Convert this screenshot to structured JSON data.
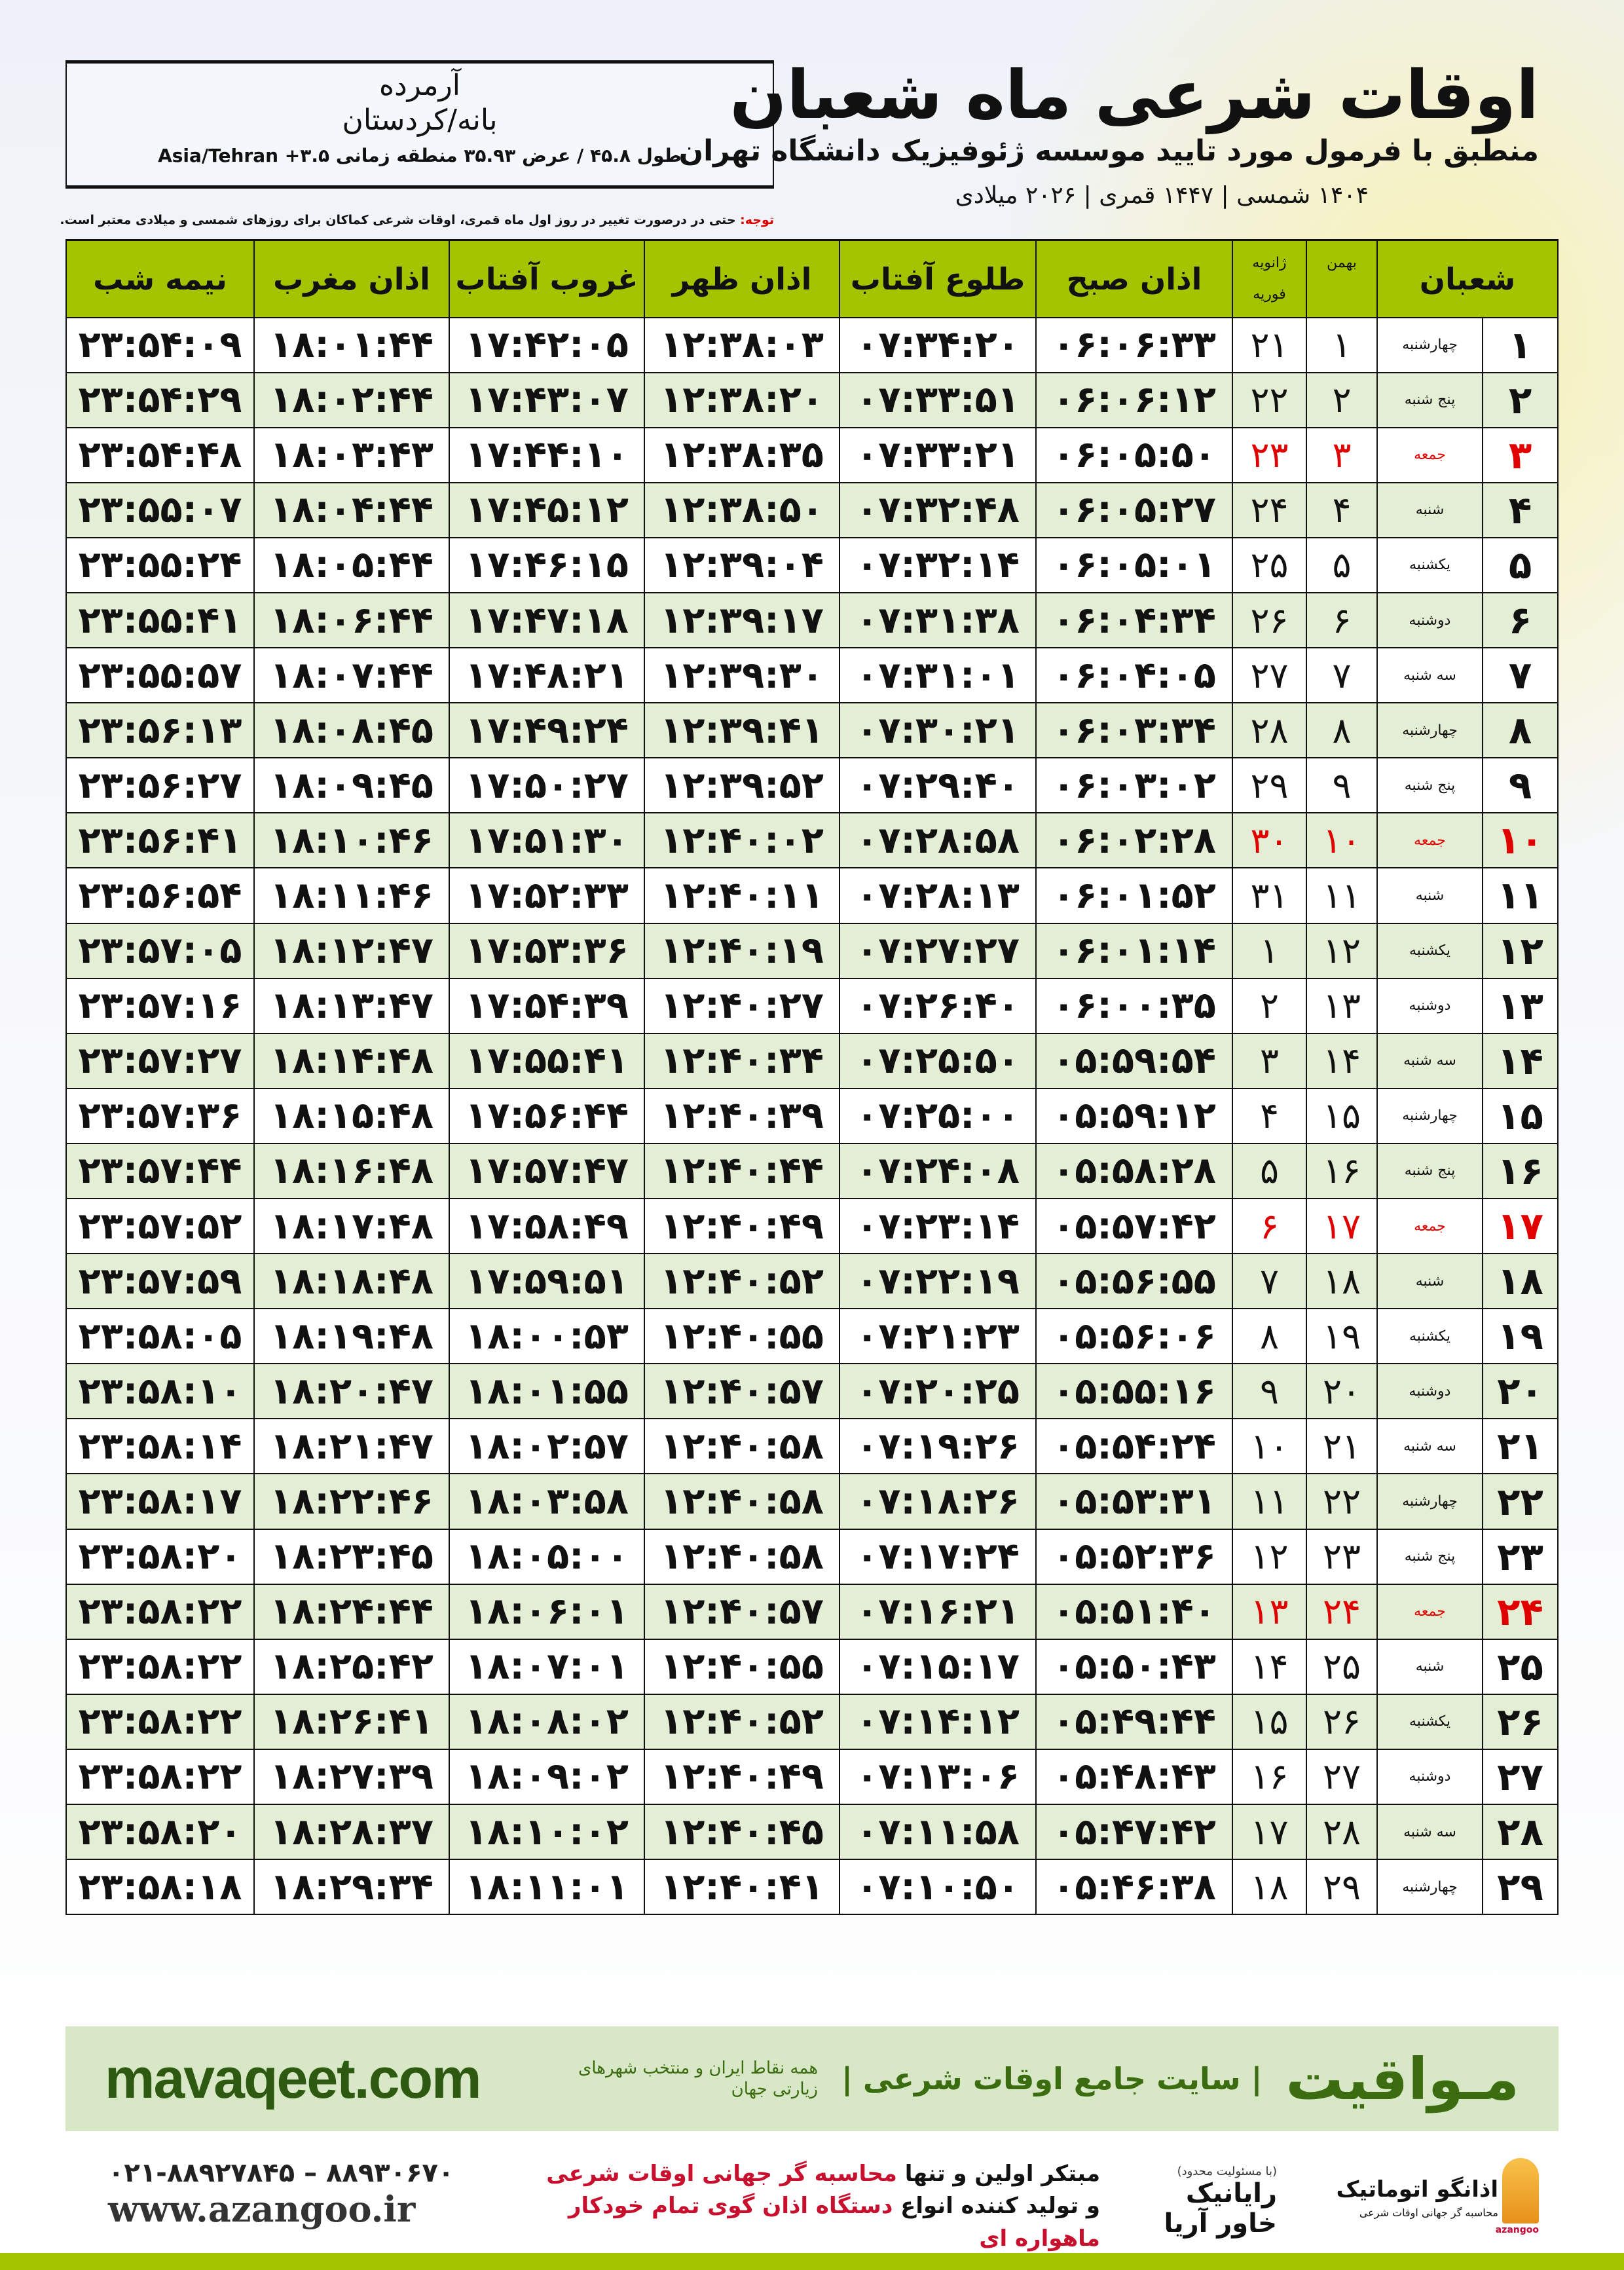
{
  "header": {
    "title": "اوقات شرعی ماه شعبان",
    "subtitle": "منطبق با فرمول مورد تایید موسسه ژئوفیزیک دانشگاه تهران",
    "dates": "۱۴۰۴ شمسی | ۱۴۴۷ قمری | ۲۰۲۶ میلادی"
  },
  "location": {
    "city": "آرمرده",
    "region": "بانه/کردستان",
    "coords": "طول ۴۵.۸ / عرض ۳۵.۹۳ منطقه زمانی ۳.۵+ Asia/Tehran"
  },
  "note": {
    "label": "توجه:",
    "text": " حتی در درصورت تغییر در روز اول ماه قمری، اوقات شرعی کماکان برای روزهای شمسی و میلادی معتبر است."
  },
  "colors": {
    "header_bg": "#a5c400",
    "row_alt": "#e4eed4",
    "friday": "#e00000",
    "brand": "#3b6c10"
  },
  "table": {
    "headers": {
      "shaban": "شعبان",
      "bahman": "بهمن",
      "greg1": "ژانویه",
      "greg2": "فوریه",
      "fajr": "اذان صبح",
      "sunrise": "طلوع آفتاب",
      "dhuhr": "اذان ظهر",
      "sunset": "غروب آفتاب",
      "maghrib": "اذان مغرب",
      "midnight": "نیمه شب"
    },
    "rows": [
      [
        "۱",
        "چهارشنبه",
        "۱",
        "۲۱",
        "۰۶:۰۶:۳۳",
        "۰۷:۳۴:۲۰",
        "۱۲:۳۸:۰۳",
        "۱۷:۴۲:۰۵",
        "۱۸:۰۱:۴۴",
        "۲۳:۵۴:۰۹"
      ],
      [
        "۲",
        "پنج شنبه",
        "۲",
        "۲۲",
        "۰۶:۰۶:۱۲",
        "۰۷:۳۳:۵۱",
        "۱۲:۳۸:۲۰",
        "۱۷:۴۳:۰۷",
        "۱۸:۰۲:۴۴",
        "۲۳:۵۴:۲۹"
      ],
      [
        "۳",
        "جمعه",
        "۳",
        "۲۳",
        "۰۶:۰۵:۵۰",
        "۰۷:۳۳:۲۱",
        "۱۲:۳۸:۳۵",
        "۱۷:۴۴:۱۰",
        "۱۸:۰۳:۴۳",
        "۲۳:۵۴:۴۸"
      ],
      [
        "۴",
        "شنبه",
        "۴",
        "۲۴",
        "۰۶:۰۵:۲۷",
        "۰۷:۳۲:۴۸",
        "۱۲:۳۸:۵۰",
        "۱۷:۴۵:۱۲",
        "۱۸:۰۴:۴۴",
        "۲۳:۵۵:۰۷"
      ],
      [
        "۵",
        "یکشنبه",
        "۵",
        "۲۵",
        "۰۶:۰۵:۰۱",
        "۰۷:۳۲:۱۴",
        "۱۲:۳۹:۰۴",
        "۱۷:۴۶:۱۵",
        "۱۸:۰۵:۴۴",
        "۲۳:۵۵:۲۴"
      ],
      [
        "۶",
        "دوشنبه",
        "۶",
        "۲۶",
        "۰۶:۰۴:۳۴",
        "۰۷:۳۱:۳۸",
        "۱۲:۳۹:۱۷",
        "۱۷:۴۷:۱۸",
        "۱۸:۰۶:۴۴",
        "۲۳:۵۵:۴۱"
      ],
      [
        "۷",
        "سه شنبه",
        "۷",
        "۲۷",
        "۰۶:۰۴:۰۵",
        "۰۷:۳۱:۰۱",
        "۱۲:۳۹:۳۰",
        "۱۷:۴۸:۲۱",
        "۱۸:۰۷:۴۴",
        "۲۳:۵۵:۵۷"
      ],
      [
        "۸",
        "چهارشنبه",
        "۸",
        "۲۸",
        "۰۶:۰۳:۳۴",
        "۰۷:۳۰:۲۱",
        "۱۲:۳۹:۴۱",
        "۱۷:۴۹:۲۴",
        "۱۸:۰۸:۴۵",
        "۲۳:۵۶:۱۳"
      ],
      [
        "۹",
        "پنج شنبه",
        "۹",
        "۲۹",
        "۰۶:۰۳:۰۲",
        "۰۷:۲۹:۴۰",
        "۱۲:۳۹:۵۲",
        "۱۷:۵۰:۲۷",
        "۱۸:۰۹:۴۵",
        "۲۳:۵۶:۲۷"
      ],
      [
        "۱۰",
        "جمعه",
        "۱۰",
        "۳۰",
        "۰۶:۰۲:۲۸",
        "۰۷:۲۸:۵۸",
        "۱۲:۴۰:۰۲",
        "۱۷:۵۱:۳۰",
        "۱۸:۱۰:۴۶",
        "۲۳:۵۶:۴۱"
      ],
      [
        "۱۱",
        "شنبه",
        "۱۱",
        "۳۱",
        "۰۶:۰۱:۵۲",
        "۰۷:۲۸:۱۳",
        "۱۲:۴۰:۱۱",
        "۱۷:۵۲:۳۳",
        "۱۸:۱۱:۴۶",
        "۲۳:۵۶:۵۴"
      ],
      [
        "۱۲",
        "یکشنبه",
        "۱۲",
        "۱",
        "۰۶:۰۱:۱۴",
        "۰۷:۲۷:۲۷",
        "۱۲:۴۰:۱۹",
        "۱۷:۵۳:۳۶",
        "۱۸:۱۲:۴۷",
        "۲۳:۵۷:۰۵"
      ],
      [
        "۱۳",
        "دوشنبه",
        "۱۳",
        "۲",
        "۰۶:۰۰:۳۵",
        "۰۷:۲۶:۴۰",
        "۱۲:۴۰:۲۷",
        "۱۷:۵۴:۳۹",
        "۱۸:۱۳:۴۷",
        "۲۳:۵۷:۱۶"
      ],
      [
        "۱۴",
        "سه شنبه",
        "۱۴",
        "۳",
        "۰۵:۵۹:۵۴",
        "۰۷:۲۵:۵۰",
        "۱۲:۴۰:۳۴",
        "۱۷:۵۵:۴۱",
        "۱۸:۱۴:۴۸",
        "۲۳:۵۷:۲۷"
      ],
      [
        "۱۵",
        "چهارشنبه",
        "۱۵",
        "۴",
        "۰۵:۵۹:۱۲",
        "۰۷:۲۵:۰۰",
        "۱۲:۴۰:۳۹",
        "۱۷:۵۶:۴۴",
        "۱۸:۱۵:۴۸",
        "۲۳:۵۷:۳۶"
      ],
      [
        "۱۶",
        "پنج شنبه",
        "۱۶",
        "۵",
        "۰۵:۵۸:۲۸",
        "۰۷:۲۴:۰۸",
        "۱۲:۴۰:۴۴",
        "۱۷:۵۷:۴۷",
        "۱۸:۱۶:۴۸",
        "۲۳:۵۷:۴۴"
      ],
      [
        "۱۷",
        "جمعه",
        "۱۷",
        "۶",
        "۰۵:۵۷:۴۲",
        "۰۷:۲۳:۱۴",
        "۱۲:۴۰:۴۹",
        "۱۷:۵۸:۴۹",
        "۱۸:۱۷:۴۸",
        "۲۳:۵۷:۵۲"
      ],
      [
        "۱۸",
        "شنبه",
        "۱۸",
        "۷",
        "۰۵:۵۶:۵۵",
        "۰۷:۲۲:۱۹",
        "۱۲:۴۰:۵۲",
        "۱۷:۵۹:۵۱",
        "۱۸:۱۸:۴۸",
        "۲۳:۵۷:۵۹"
      ],
      [
        "۱۹",
        "یکشنبه",
        "۱۹",
        "۸",
        "۰۵:۵۶:۰۶",
        "۰۷:۲۱:۲۳",
        "۱۲:۴۰:۵۵",
        "۱۸:۰۰:۵۳",
        "۱۸:۱۹:۴۸",
        "۲۳:۵۸:۰۵"
      ],
      [
        "۲۰",
        "دوشنبه",
        "۲۰",
        "۹",
        "۰۵:۵۵:۱۶",
        "۰۷:۲۰:۲۵",
        "۱۲:۴۰:۵۷",
        "۱۸:۰۱:۵۵",
        "۱۸:۲۰:۴۷",
        "۲۳:۵۸:۱۰"
      ],
      [
        "۲۱",
        "سه شنبه",
        "۲۱",
        "۱۰",
        "۰۵:۵۴:۲۴",
        "۰۷:۱۹:۲۶",
        "۱۲:۴۰:۵۸",
        "۱۸:۰۲:۵۷",
        "۱۸:۲۱:۴۷",
        "۲۳:۵۸:۱۴"
      ],
      [
        "۲۲",
        "چهارشنبه",
        "۲۲",
        "۱۱",
        "۰۵:۵۳:۳۱",
        "۰۷:۱۸:۲۶",
        "۱۲:۴۰:۵۸",
        "۱۸:۰۳:۵۸",
        "۱۸:۲۲:۴۶",
        "۲۳:۵۸:۱۷"
      ],
      [
        "۲۳",
        "پنج شنبه",
        "۲۳",
        "۱۲",
        "۰۵:۵۲:۳۶",
        "۰۷:۱۷:۲۴",
        "۱۲:۴۰:۵۸",
        "۱۸:۰۵:۰۰",
        "۱۸:۲۳:۴۵",
        "۲۳:۵۸:۲۰"
      ],
      [
        "۲۴",
        "جمعه",
        "۲۴",
        "۱۳",
        "۰۵:۵۱:۴۰",
        "۰۷:۱۶:۲۱",
        "۱۲:۴۰:۵۷",
        "۱۸:۰۶:۰۱",
        "۱۸:۲۴:۴۴",
        "۲۳:۵۸:۲۲"
      ],
      [
        "۲۵",
        "شنبه",
        "۲۵",
        "۱۴",
        "۰۵:۵۰:۴۳",
        "۰۷:۱۵:۱۷",
        "۱۲:۴۰:۵۵",
        "۱۸:۰۷:۰۱",
        "۱۸:۲۵:۴۲",
        "۲۳:۵۸:۲۲"
      ],
      [
        "۲۶",
        "یکشنبه",
        "۲۶",
        "۱۵",
        "۰۵:۴۹:۴۴",
        "۰۷:۱۴:۱۲",
        "۱۲:۴۰:۵۲",
        "۱۸:۰۸:۰۲",
        "۱۸:۲۶:۴۱",
        "۲۳:۵۸:۲۲"
      ],
      [
        "۲۷",
        "دوشنبه",
        "۲۷",
        "۱۶",
        "۰۵:۴۸:۴۳",
        "۰۷:۱۳:۰۶",
        "۱۲:۴۰:۴۹",
        "۱۸:۰۹:۰۲",
        "۱۸:۲۷:۳۹",
        "۲۳:۵۸:۲۲"
      ],
      [
        "۲۸",
        "سه شنبه",
        "۲۸",
        "۱۷",
        "۰۵:۴۷:۴۲",
        "۰۷:۱۱:۵۸",
        "۱۲:۴۰:۴۵",
        "۱۸:۱۰:۰۲",
        "۱۸:۲۸:۳۷",
        "۲۳:۵۸:۲۰"
      ],
      [
        "۲۹",
        "چهارشنبه",
        "۲۹",
        "۱۸",
        "۰۵:۴۶:۳۸",
        "۰۷:۱۰:۵۰",
        "۱۲:۴۰:۴۱",
        "۱۸:۱۱:۰۱",
        "۱۸:۲۹:۳۴",
        "۲۳:۵۸:۱۸"
      ]
    ]
  },
  "banner": {
    "brand": "مـواقیت",
    "tagline": "| سایت جامع اوقات شرعی |",
    "tagline2": "همه نقاط ایران و منتخب شهرهای زیارتی جهان",
    "site": "mavaqeet.com"
  },
  "footer": {
    "phone": "۰۲۱-۸۸۹۲۷۸۴۵ – ۸۸۹۳۰۶۷۰",
    "web": "www.azangoo.ir",
    "promo1a": "مبتکر اولین و تنها ",
    "promo1b": "محاسبه گر جهانی اوقات شرعی",
    "promo2a": "و تولید کننده انواع ",
    "promo2b": "دستگاه اذان گوی تمام خودکار ماهواره ای",
    "logo1_small": "(با مسئولیت محدود)",
    "logo1": "رایانیک خاور آریا",
    "logo2": "اذانگو اتوماتیک",
    "logo2_sub": "محاسبه گر جهانی اوقات شرعی",
    "logo2_en": "azangoo"
  }
}
